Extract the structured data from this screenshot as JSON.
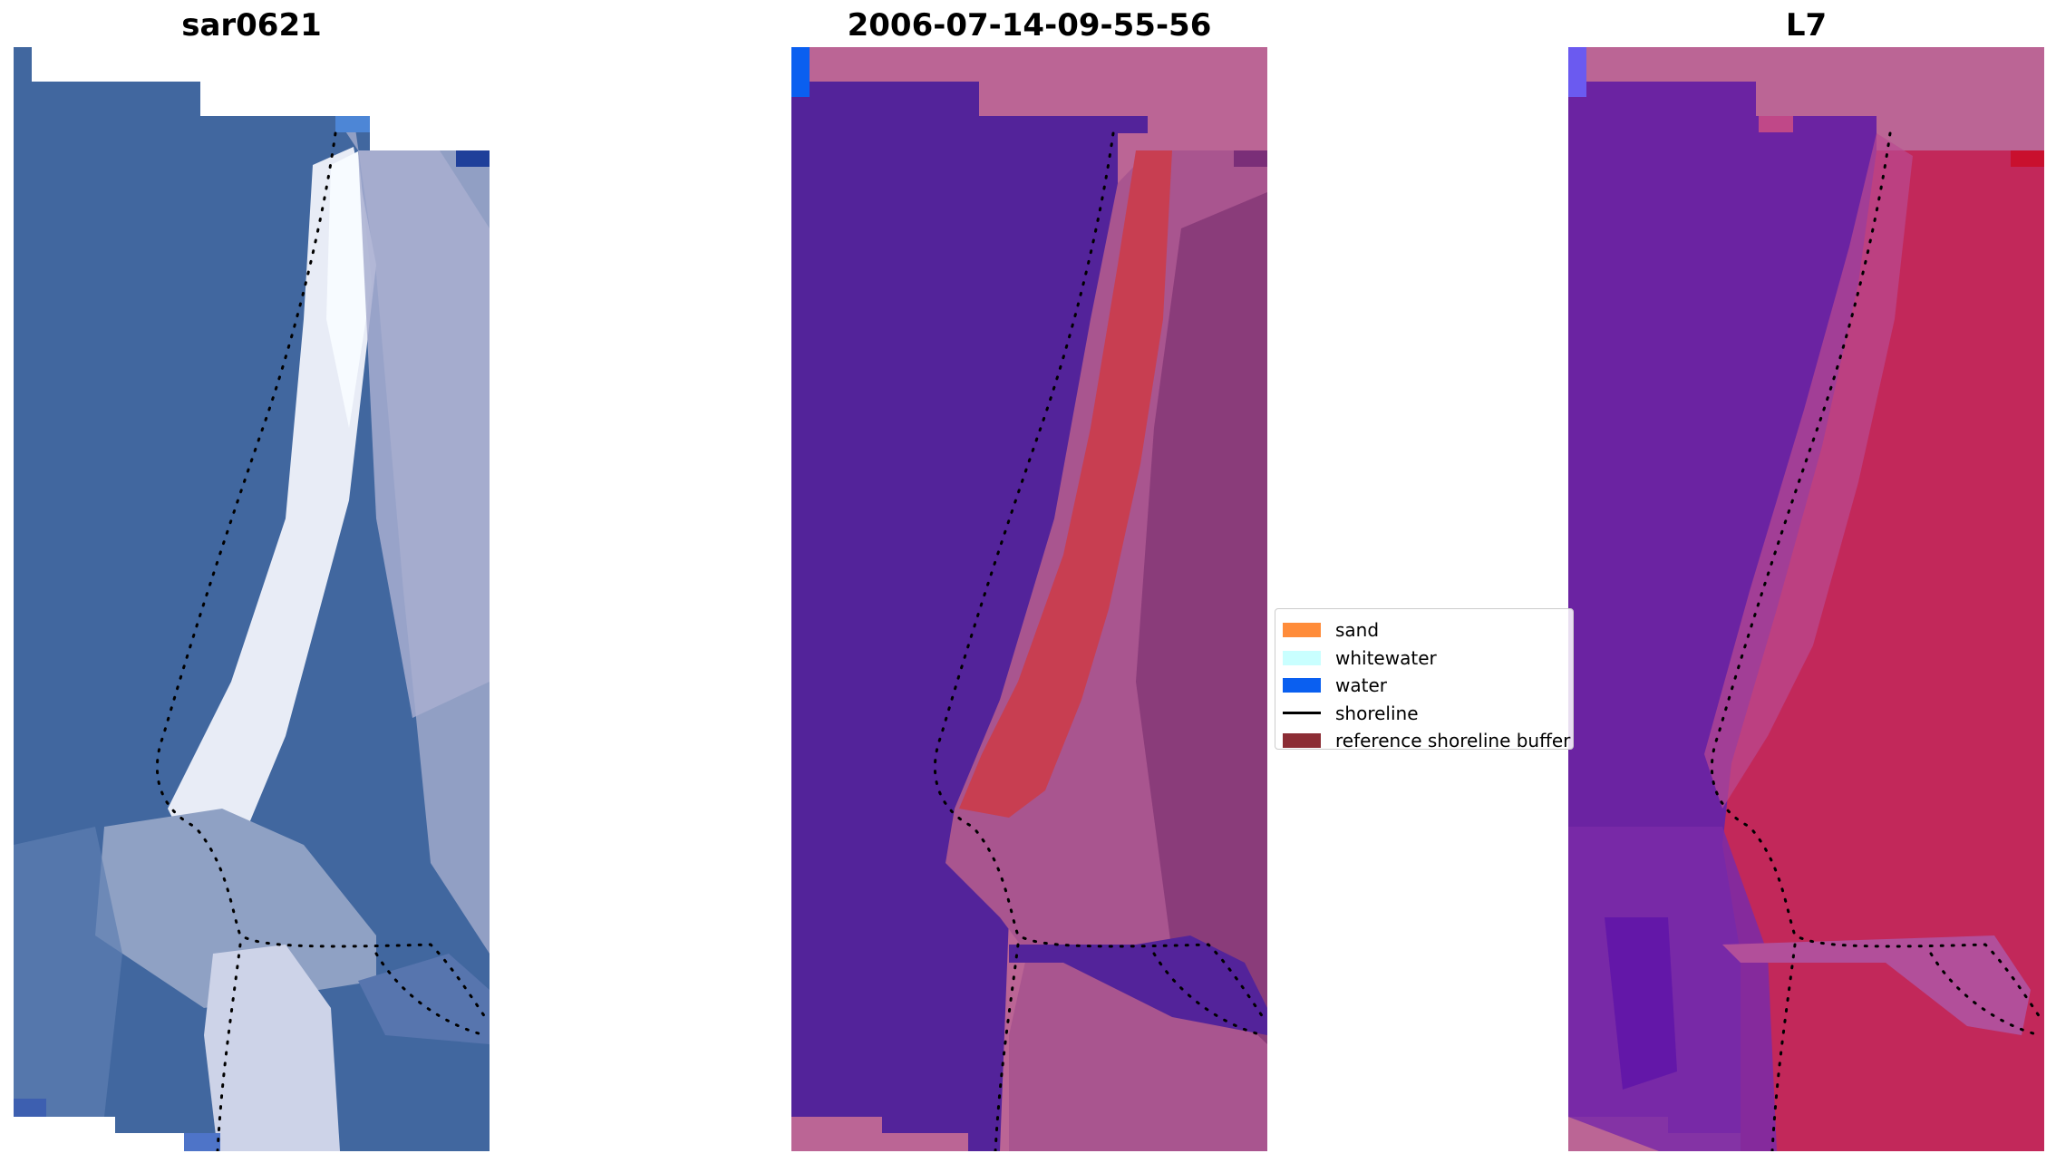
{
  "panels": [
    {
      "title": "sar0621",
      "background": "#3f67a4",
      "surf": "#7a94b8",
      "shore": "#eef2f8"
    },
    {
      "title": "2006-07-14-09-55-56",
      "background": "#53239a",
      "surf": "#8a3c7a",
      "shore": "#cc3d4f"
    },
    {
      "title": "L7",
      "background": "#6a23a0",
      "surf": "#c2285a",
      "shore": "#c2285a"
    }
  ],
  "legend": {
    "items": [
      {
        "label": "sand",
        "color": "#ff8c3a",
        "kind": "patch"
      },
      {
        "label": "whitewater",
        "color": "#c9ffff",
        "kind": "patch"
      },
      {
        "label": "water",
        "color": "#0a5ff0",
        "kind": "patch"
      },
      {
        "label": "shoreline",
        "color": "#000000",
        "kind": "line"
      },
      {
        "label": "reference shoreline buffer",
        "color": "#8c2d35",
        "kind": "patch"
      }
    ]
  }
}
